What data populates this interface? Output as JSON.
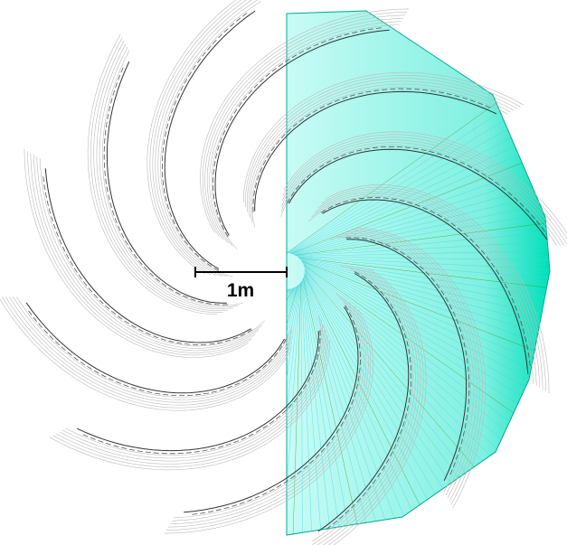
{
  "scale_label": "1m"
}
